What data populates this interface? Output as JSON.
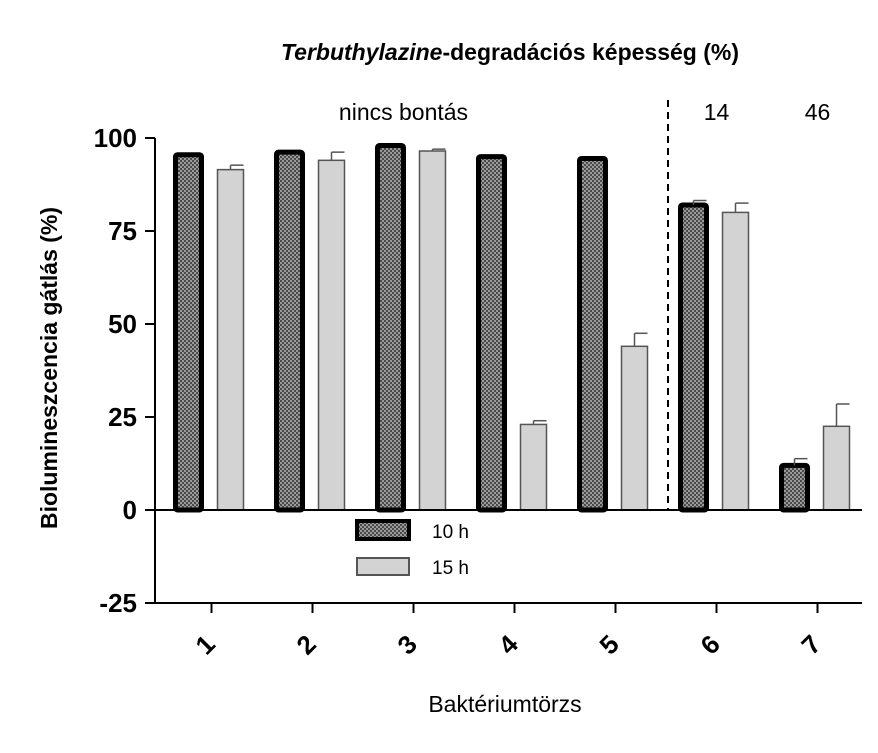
{
  "chart_data": {
    "type": "bar",
    "title_italic": "Terbuthylazine",
    "title_rest": "-degradációs képesség (%)",
    "xlabel": "Baktériumtörzs",
    "ylabel": "Biolumineszcencia gátlás (%)",
    "ylim": [
      -25,
      100
    ],
    "yticks": [
      "100",
      "75",
      "50",
      "25",
      "0",
      "-25"
    ],
    "ytick_values": [
      100,
      75,
      50,
      25,
      0,
      -25
    ],
    "categories": [
      "1",
      "2",
      "3",
      "4",
      "5",
      "6",
      "7"
    ],
    "series": [
      {
        "name": "10 h",
        "values": [
          95.5,
          96.2,
          98.0,
          95.0,
          94.5,
          82.0,
          12.0
        ],
        "errors": [
          0,
          0,
          0,
          0,
          0,
          1.2,
          1.8
        ],
        "color": "#777777",
        "pattern": "checker",
        "border": "#000000"
      },
      {
        "name": "15 h",
        "values": [
          91.5,
          94.0,
          96.5,
          23.0,
          44.0,
          80.0,
          22.5
        ],
        "errors": [
          1.2,
          2.2,
          0.5,
          1.0,
          3.5,
          2.5,
          6.0
        ],
        "color": "#d3d3d3",
        "pattern": "solid",
        "border": "#555555"
      }
    ],
    "annotations": [
      {
        "text": "nincs bontás",
        "category": "3",
        "y": 107
      },
      {
        "text": "14",
        "category": "6",
        "y": 107
      },
      {
        "text": "46",
        "category": "7",
        "y": 107
      }
    ],
    "separator_after_category": "5",
    "legend_placement": "center"
  }
}
